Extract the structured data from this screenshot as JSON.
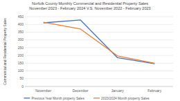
{
  "chart_data": {
    "type": "line",
    "title": "Norfolk County Monthly Commercial and Residential Property Sales",
    "subtitle": "November 2023 - February 2024 V.S. November 2022 - February 2023",
    "y_label": "Commercial and Residential Property Sales",
    "categories": [
      "November",
      "December",
      "January",
      "February"
    ],
    "series": [
      {
        "name": "Previous Year Month property Sales",
        "color": "#4472c4",
        "values": [
          410,
          428,
          185,
          146
        ]
      },
      {
        "name": "2023/2024 Month property Sales",
        "color": "#ed7d31",
        "values": [
          414,
          370,
          197,
          150
        ]
      }
    ],
    "ylim": [
      0,
      450
    ],
    "yticks": [
      0,
      50,
      100,
      150,
      200,
      250,
      300,
      350,
      400,
      450
    ],
    "grid": true,
    "legend": "bottom"
  }
}
